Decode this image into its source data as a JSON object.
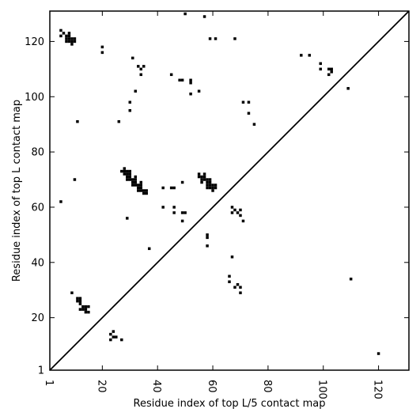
{
  "chart_data": {
    "type": "scatter",
    "title": "",
    "xlabel": "Residue index of top L/5 contact map",
    "ylabel": "Residue index of top L contact map",
    "xlim": [
      1,
      131
    ],
    "ylim": [
      1,
      131
    ],
    "x_ticks": [
      1,
      20,
      40,
      60,
      80,
      100,
      120
    ],
    "y_ticks": [
      1,
      20,
      40,
      60,
      80,
      100,
      120
    ],
    "x_tick_labels": [
      "1",
      "20",
      "40",
      "60",
      "80",
      "100",
      "120"
    ],
    "y_tick_labels": [
      "1",
      "20",
      "40",
      "60",
      "80",
      "100",
      "120"
    ],
    "x_tick_label_rotation": -90,
    "diagonal_line": true,
    "grid": false,
    "legend": "none",
    "marker": "square",
    "colors": {
      "marker": "#000000",
      "axes": "#000000",
      "background": "#ffffff"
    },
    "points": [
      [
        5,
        124
      ],
      [
        5,
        122
      ],
      [
        6,
        123
      ],
      [
        7,
        122
      ],
      [
        7,
        121
      ],
      [
        7,
        120
      ],
      [
        8,
        123
      ],
      [
        8,
        122
      ],
      [
        8,
        121
      ],
      [
        8,
        120
      ],
      [
        9,
        121
      ],
      [
        9,
        120
      ],
      [
        9,
        119
      ],
      [
        10,
        121
      ],
      [
        10,
        120
      ],
      [
        20,
        118
      ],
      [
        20,
        116
      ],
      [
        50,
        130
      ],
      [
        57,
        129
      ],
      [
        59,
        121
      ],
      [
        61,
        121
      ],
      [
        68,
        121
      ],
      [
        31,
        114
      ],
      [
        33,
        111
      ],
      [
        34,
        110
      ],
      [
        34,
        108
      ],
      [
        35,
        111
      ],
      [
        32,
        102
      ],
      [
        45,
        108
      ],
      [
        48,
        106
      ],
      [
        49,
        106
      ],
      [
        52,
        106
      ],
      [
        52,
        105
      ],
      [
        52,
        101
      ],
      [
        55,
        102
      ],
      [
        92,
        115
      ],
      [
        95,
        115
      ],
      [
        99,
        112
      ],
      [
        99,
        110
      ],
      [
        102,
        110
      ],
      [
        102,
        108
      ],
      [
        103,
        110
      ],
      [
        103,
        109
      ],
      [
        109,
        103
      ],
      [
        30,
        98
      ],
      [
        30,
        95
      ],
      [
        26,
        91
      ],
      [
        11,
        91
      ],
      [
        71,
        98
      ],
      [
        73,
        98
      ],
      [
        73,
        94
      ],
      [
        75,
        90
      ],
      [
        10,
        70
      ],
      [
        5,
        62
      ],
      [
        27,
        73
      ],
      [
        28,
        74
      ],
      [
        28,
        73
      ],
      [
        28,
        72
      ],
      [
        29,
        73
      ],
      [
        29,
        72
      ],
      [
        29,
        71
      ],
      [
        29,
        70
      ],
      [
        30,
        73
      ],
      [
        30,
        72
      ],
      [
        30,
        71
      ],
      [
        30,
        70
      ],
      [
        31,
        70
      ],
      [
        31,
        69
      ],
      [
        31,
        68
      ],
      [
        32,
        71
      ],
      [
        32,
        70
      ],
      [
        32,
        69
      ],
      [
        32,
        68
      ],
      [
        33,
        68
      ],
      [
        33,
        67
      ],
      [
        33,
        66
      ],
      [
        34,
        69
      ],
      [
        34,
        68
      ],
      [
        34,
        67
      ],
      [
        34,
        66
      ],
      [
        35,
        66
      ],
      [
        35,
        65
      ],
      [
        36,
        66
      ],
      [
        36,
        65
      ],
      [
        42,
        67
      ],
      [
        45,
        67
      ],
      [
        46,
        67
      ],
      [
        49,
        69
      ],
      [
        55,
        72
      ],
      [
        55,
        71
      ],
      [
        56,
        71
      ],
      [
        56,
        70
      ],
      [
        56,
        69
      ],
      [
        57,
        72
      ],
      [
        57,
        71
      ],
      [
        57,
        70
      ],
      [
        58,
        70
      ],
      [
        58,
        69
      ],
      [
        58,
        68
      ],
      [
        58,
        67
      ],
      [
        59,
        70
      ],
      [
        59,
        69
      ],
      [
        59,
        68
      ],
      [
        59,
        67
      ],
      [
        60,
        68
      ],
      [
        60,
        67
      ],
      [
        60,
        66
      ],
      [
        61,
        68
      ],
      [
        61,
        67
      ],
      [
        42,
        60
      ],
      [
        46,
        60
      ],
      [
        46,
        58
      ],
      [
        49,
        58
      ],
      [
        50,
        58
      ],
      [
        49,
        55
      ],
      [
        29,
        56
      ],
      [
        58,
        50
      ],
      [
        58,
        49
      ],
      [
        58,
        46
      ],
      [
        37,
        45
      ],
      [
        67,
        60
      ],
      [
        67,
        58
      ],
      [
        68,
        59
      ],
      [
        69,
        58
      ],
      [
        70,
        59
      ],
      [
        70,
        57
      ],
      [
        71,
        55
      ],
      [
        67,
        42
      ],
      [
        110,
        34
      ],
      [
        66,
        35
      ],
      [
        66,
        33
      ],
      [
        68,
        31
      ],
      [
        69,
        32
      ],
      [
        70,
        31
      ],
      [
        70,
        29
      ],
      [
        9,
        29
      ],
      [
        11,
        27
      ],
      [
        11,
        26
      ],
      [
        12,
        27
      ],
      [
        12,
        26
      ],
      [
        12,
        25
      ],
      [
        13,
        24
      ],
      [
        13,
        23
      ],
      [
        14,
        24
      ],
      [
        14,
        23
      ],
      [
        14,
        22
      ],
      [
        15,
        24
      ],
      [
        15,
        22
      ],
      [
        12,
        23
      ],
      [
        24,
        15
      ],
      [
        23,
        14
      ],
      [
        24,
        13
      ],
      [
        25,
        13
      ],
      [
        23,
        12
      ],
      [
        27,
        12
      ],
      [
        120,
        7
      ]
    ]
  }
}
